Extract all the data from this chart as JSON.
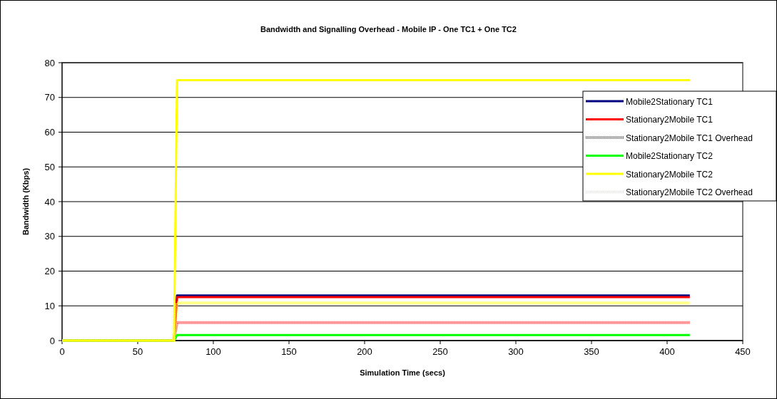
{
  "chart_data": {
    "type": "line",
    "title": "Bandwidth and Signalling Overhead - Mobile IP - One TC1 + One TC2",
    "xlabel": "Simulation Time (secs)",
    "ylabel": "Bandwidth (Kbps)",
    "x": [
      0,
      74,
      76,
      415
    ],
    "series": [
      {
        "name": "Mobile2Stationary TC1",
        "color": "#000080",
        "values": [
          0,
          0,
          13,
          13
        ]
      },
      {
        "name": "Stationary2Mobile TC1",
        "color": "#ff0000",
        "values": [
          0,
          0,
          12.5,
          12.5
        ]
      },
      {
        "name": "Stationary2Mobile TC1 Overhead",
        "color": "#ff3333",
        "line_style": "dotted",
        "values": [
          0,
          0,
          5.2,
          5.2
        ]
      },
      {
        "name": "Mobile2Stationary TC2",
        "color": "#00ff00",
        "values": [
          0,
          0,
          1.6,
          1.6
        ]
      },
      {
        "name": "Stationary2Mobile TC2",
        "color": "#ffff00",
        "values": [
          0,
          0,
          75,
          75
        ]
      },
      {
        "name": "Stationary2Mobile TC2 Overhead",
        "color": "#ffff33",
        "line_style": "dotted",
        "values": [
          0,
          0,
          10.8,
          10.8
        ]
      }
    ],
    "xlim": [
      0,
      450
    ],
    "xticks": [
      0,
      50,
      100,
      150,
      200,
      250,
      300,
      350,
      400,
      450
    ],
    "ylim": [
      0,
      80
    ],
    "yticks": [
      0,
      10,
      20,
      30,
      40,
      50,
      60,
      70,
      80
    ],
    "grid": "y",
    "legend": "right",
    "marker": "none",
    "line_style": "solid"
  }
}
